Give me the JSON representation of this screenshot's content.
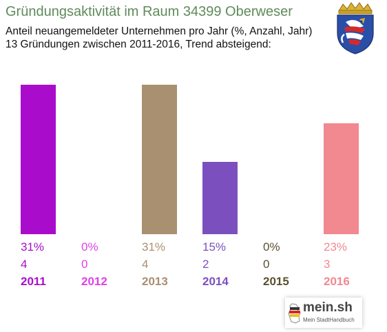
{
  "header": {
    "title": "Gründungsaktivität im Raum 34399 Oberweser",
    "subtitle_line1": "Anteil neuangemeldeter Unternehmen pro Jahr (%, Anzahl, Jahr)",
    "subtitle_line2": "13 Gründungen zwischen 2011-2016, Trend absteigend:"
  },
  "coat_of_arms": {
    "icon": "hesse-lion-coat-of-arms-icon"
  },
  "logo": {
    "brand": "mein.sh",
    "tagline": "Mein StadtHandbuch",
    "icon": "germany-map-icon"
  },
  "chart_data": {
    "type": "bar",
    "categories": [
      "2011",
      "2012",
      "2013",
      "2014",
      "2015",
      "2016"
    ],
    "values": [
      31,
      0,
      31,
      15,
      0,
      23
    ],
    "percent_labels": [
      "31%",
      "0%",
      "31%",
      "15%",
      "0%",
      "23%"
    ],
    "counts": [
      4,
      0,
      4,
      2,
      0,
      3
    ],
    "unit": "%",
    "ylim": [
      0,
      31
    ],
    "grid": false,
    "legend": "none",
    "colors": [
      "#aa0ccc",
      "#e040e8",
      "#a89070",
      "#7b50be",
      "#5a5030",
      "#f28890"
    ]
  }
}
